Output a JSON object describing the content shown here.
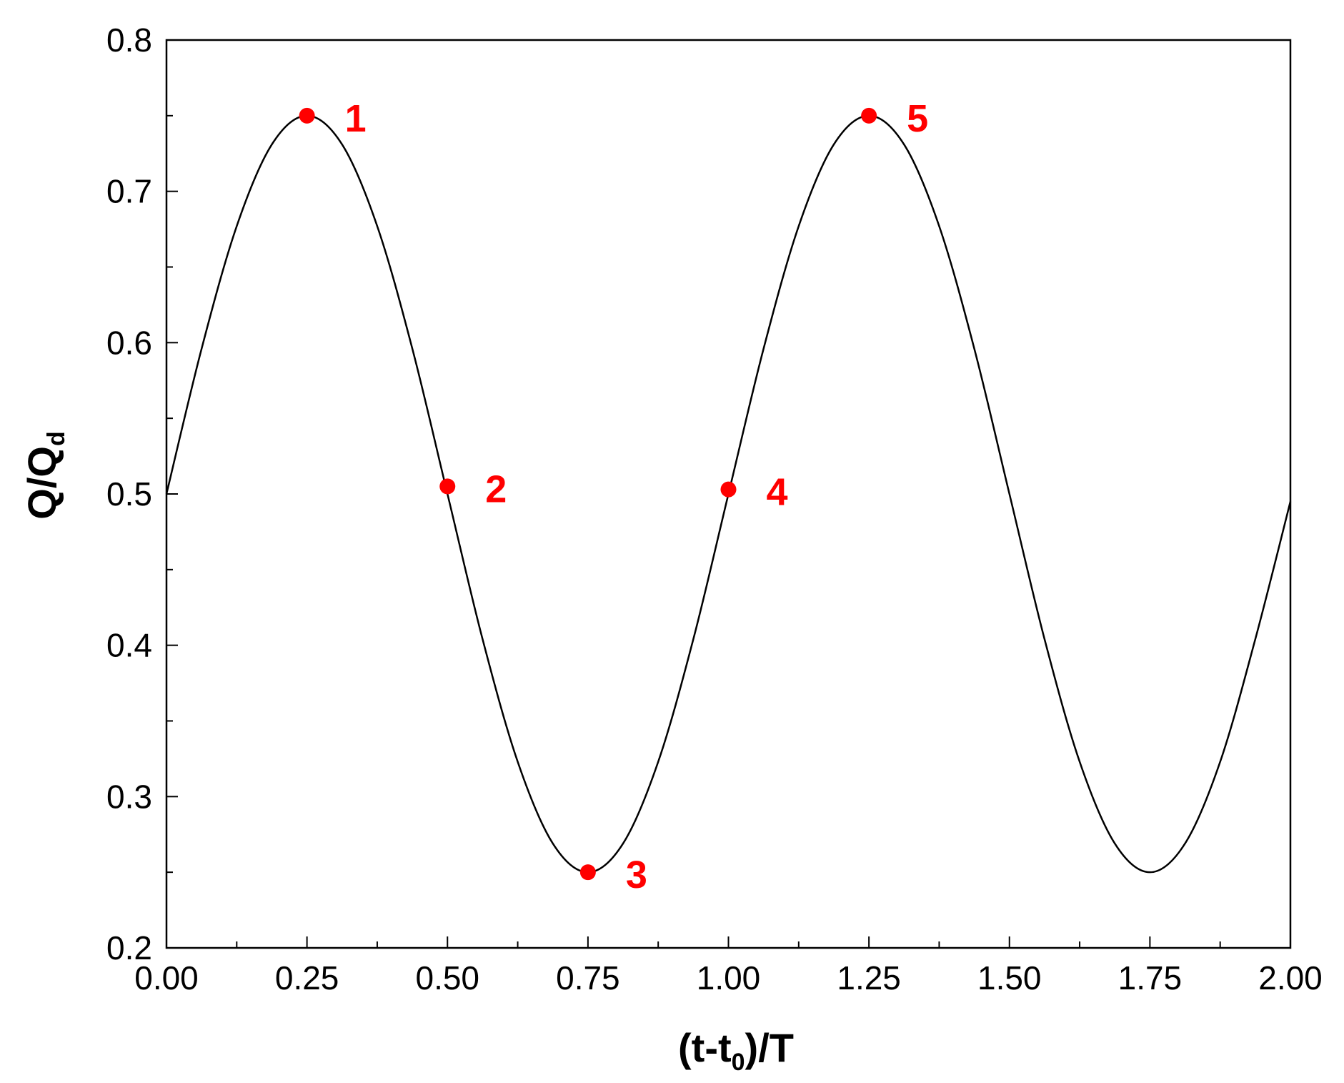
{
  "chart_data": {
    "type": "line",
    "title": "",
    "xlabel": {
      "main": "(t-t",
      "sub": "0",
      "tail": ")/T"
    },
    "ylabel": {
      "main": "Q/Q",
      "sub": "d"
    },
    "xlim": [
      0.0,
      2.0
    ],
    "ylim": [
      0.2,
      0.8
    ],
    "x_ticks": [
      "0.00",
      "0.25",
      "0.50",
      "0.75",
      "1.00",
      "1.25",
      "1.50",
      "1.75",
      "2.00"
    ],
    "y_ticks": [
      "0.2",
      "0.3",
      "0.4",
      "0.5",
      "0.6",
      "0.7",
      "0.8"
    ],
    "grid": false,
    "series": [
      {
        "x": [
          0.0,
          0.0625,
          0.125,
          0.1875,
          0.25,
          0.3125,
          0.375,
          0.4375,
          0.5,
          0.5625,
          0.625,
          0.6875,
          0.75,
          0.8125,
          0.875,
          0.9375,
          1.0,
          1.0625,
          1.125,
          1.1875,
          1.25,
          1.3125,
          1.375,
          1.4375,
          1.5,
          1.5625,
          1.625,
          1.6875,
          1.75,
          1.8125,
          1.875,
          1.9375,
          2.0
        ],
        "y": [
          0.5,
          0.596,
          0.677,
          0.731,
          0.75,
          0.731,
          0.677,
          0.596,
          0.5,
          0.404,
          0.323,
          0.269,
          0.25,
          0.269,
          0.323,
          0.404,
          0.5,
          0.596,
          0.677,
          0.731,
          0.75,
          0.731,
          0.677,
          0.596,
          0.5,
          0.404,
          0.323,
          0.269,
          0.25,
          0.269,
          0.323,
          0.404,
          0.495
        ]
      }
    ],
    "annotations": [
      {
        "label": "1",
        "x": 0.25,
        "y": 0.75
      },
      {
        "label": "2",
        "x": 0.5,
        "y": 0.505
      },
      {
        "label": "3",
        "x": 0.75,
        "y": 0.25
      },
      {
        "label": "4",
        "x": 1.0,
        "y": 0.503
      },
      {
        "label": "5",
        "x": 1.25,
        "y": 0.75
      }
    ],
    "colors": {
      "line": "#000000",
      "points": "#ff0000"
    }
  }
}
